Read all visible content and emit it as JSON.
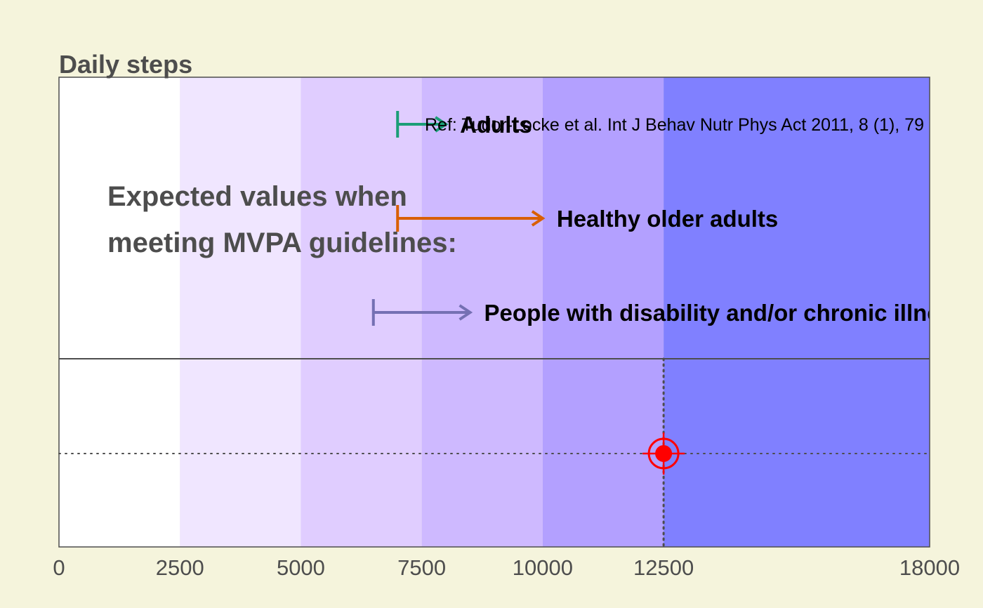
{
  "chart_data": {
    "type": "range-indicator",
    "title": "Daily steps",
    "xlim": [
      0,
      18000
    ],
    "x_ticks": [
      0,
      2500,
      5000,
      7500,
      10000,
      12500,
      18000
    ],
    "bands": [
      {
        "from": 0,
        "to": 2500,
        "color": "#FFFFFF"
      },
      {
        "from": 2500,
        "to": 5000,
        "color": "#F0E6FF"
      },
      {
        "from": 5000,
        "to": 7500,
        "color": "#E0CDFF"
      },
      {
        "from": 7500,
        "to": 10000,
        "color": "#CEB9FF"
      },
      {
        "from": 10000,
        "to": 12500,
        "color": "#B3A0FF"
      },
      {
        "from": 12500,
        "to": 18000,
        "color": "#8080FF"
      }
    ],
    "lead_text": [
      "Expected values when",
      "meeting MVPA guidelines:"
    ],
    "guidelines": [
      {
        "label": "Adults",
        "start": 7000,
        "end": 8000,
        "color": "#1B9E77"
      },
      {
        "label": "Healthy older adults",
        "start": 7000,
        "end": 10000,
        "color": "#D95F02"
      },
      {
        "label": "People with disability and/or chronic illness",
        "start": 6500,
        "end": 8500,
        "color": "#7570B3"
      }
    ],
    "reference": "Ref: Tudor-Locke et al. Int J Behav Nutr Phys Act 2011, 8 (1), 79",
    "value": 12500,
    "marker_color": "#FF0000"
  }
}
